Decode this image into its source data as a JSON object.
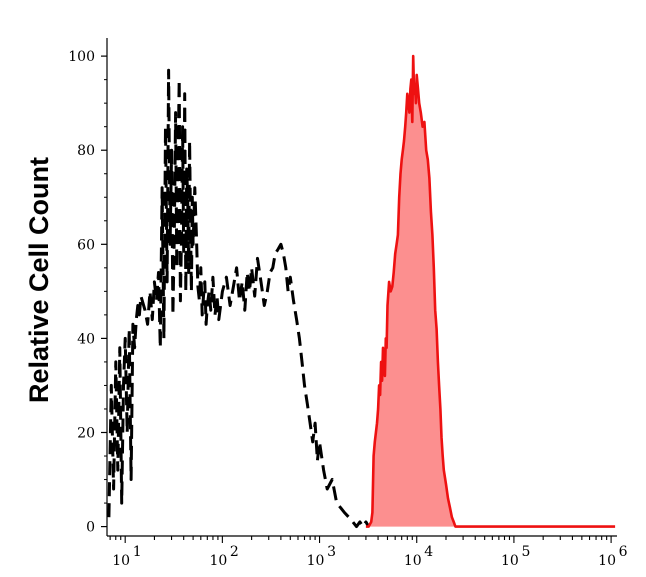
{
  "chart_data": {
    "type": "area",
    "title": "",
    "xlabel": "",
    "ylabel": "Relative Cell Count",
    "xscale": "log",
    "xlim": [
      6.5,
      1150000
    ],
    "ylim": [
      -2,
      103
    ],
    "grid": false,
    "legend": "none",
    "y_ticks": [
      0,
      20,
      40,
      60,
      80,
      100
    ],
    "y_tick_labels": [
      "0",
      "20",
      "40",
      "60",
      "80",
      "100"
    ],
    "x_ticks": [
      10,
      100,
      1000,
      10000,
      100000,
      1000000
    ],
    "x_tick_labels": [
      {
        "base": "10",
        "exp": "1"
      },
      {
        "base": "10",
        "exp": "2"
      },
      {
        "base": "10",
        "exp": "3"
      },
      {
        "base": "10",
        "exp": "4"
      },
      {
        "base": "10",
        "exp": "5"
      },
      {
        "base": "10",
        "exp": "6"
      }
    ],
    "series": [
      {
        "style": "dashed",
        "color": "#000000",
        "fill": "none",
        "x": [
          6.8,
          7.2,
          7.6,
          8.0,
          8.4,
          8.8,
          9.2,
          9.6,
          10.0,
          10.5,
          11,
          11.5,
          12,
          12.5,
          13,
          13.5,
          14,
          14.5,
          15,
          16,
          17,
          18,
          19,
          20,
          21,
          22,
          23,
          24,
          25,
          26,
          27,
          28,
          29,
          30,
          31,
          32,
          33,
          34,
          35,
          36,
          37,
          38,
          39,
          40,
          41,
          42,
          43,
          44,
          45,
          46,
          47,
          48,
          49,
          50,
          52,
          54,
          56,
          58,
          60,
          62,
          64,
          66,
          68,
          70,
          73,
          76,
          80,
          84,
          88,
          92,
          96,
          100,
          110,
          120,
          130,
          140,
          150,
          160,
          170,
          180,
          190,
          200,
          215,
          230,
          250,
          270,
          290,
          310,
          330,
          350,
          375,
          400,
          425,
          450,
          475,
          500,
          540,
          580,
          620,
          660,
          700,
          750,
          800,
          850,
          900,
          950,
          1000,
          1100,
          1200,
          1350,
          1500,
          1650,
          1800,
          2000,
          2200,
          2400,
          2600,
          2800,
          3000,
          3200
        ],
        "y": [
          2,
          30,
          8,
          35,
          12,
          38,
          5,
          30,
          40,
          20,
          42,
          10,
          43,
          38,
          44,
          47,
          45,
          49,
          48,
          46,
          43,
          50,
          44,
          52,
          48,
          54,
          38,
          72,
          40,
          85,
          52,
          97,
          60,
          80,
          45,
          62,
          88,
          55,
          78,
          95,
          48,
          62,
          85,
          58,
          92,
          50,
          76,
          70,
          54,
          82,
          65,
          50,
          70,
          60,
          72,
          62,
          51,
          48,
          55,
          45,
          49,
          52,
          43,
          47,
          50,
          46,
          53,
          45,
          49,
          44,
          47,
          50,
          53,
          47,
          51,
          55,
          48,
          52,
          46,
          54,
          50,
          55,
          49,
          57,
          52,
          47,
          50,
          54,
          55,
          58,
          59,
          60,
          58,
          55,
          50,
          53,
          48,
          44,
          40,
          35,
          30,
          26,
          22,
          18,
          22,
          14,
          18,
          12,
          8,
          10,
          5,
          4,
          3,
          2,
          1,
          0,
          1,
          0,
          1,
          0
        ]
      },
      {
        "style": "solid",
        "color": "#ee1111",
        "fill": "#fc8f8f",
        "x": [
          3000,
          3200,
          3400,
          3500,
          3600,
          3700,
          3800,
          3900,
          4000,
          4100,
          4200,
          4300,
          4400,
          4500,
          4600,
          4700,
          4800,
          4900,
          5000,
          5200,
          5400,
          5600,
          5800,
          6000,
          6200,
          6400,
          6600,
          6800,
          7000,
          7200,
          7400,
          7600,
          7800,
          8000,
          8200,
          8400,
          8600,
          8800,
          9000,
          9200,
          9400,
          9600,
          9800,
          10000,
          10300,
          10600,
          11000,
          11500,
          12000,
          12500,
          13000,
          13500,
          14000,
          14500,
          15000,
          15500,
          16000,
          16500,
          17000,
          17500,
          18000,
          18500,
          19000,
          20000,
          21000,
          22000,
          23000,
          24000,
          25000,
          27000,
          30000,
          40000,
          100000,
          1000000,
          1100000
        ],
        "y": [
          0,
          0,
          1,
          3,
          15,
          18,
          20,
          22,
          25,
          30,
          28,
          35,
          31,
          38,
          34,
          32,
          40,
          38,
          47,
          52,
          50,
          51,
          54,
          58,
          60,
          62,
          70,
          75,
          78,
          80,
          82,
          85,
          88,
          92,
          90,
          88,
          93,
          95,
          86,
          100,
          92,
          94,
          90,
          96,
          93,
          90,
          88,
          85,
          86,
          80,
          78,
          74,
          67,
          62,
          55,
          46,
          42,
          35,
          30,
          25,
          19,
          15,
          12,
          9,
          6,
          4,
          2,
          1,
          0,
          0,
          0,
          0,
          0,
          0,
          0
        ]
      }
    ]
  }
}
